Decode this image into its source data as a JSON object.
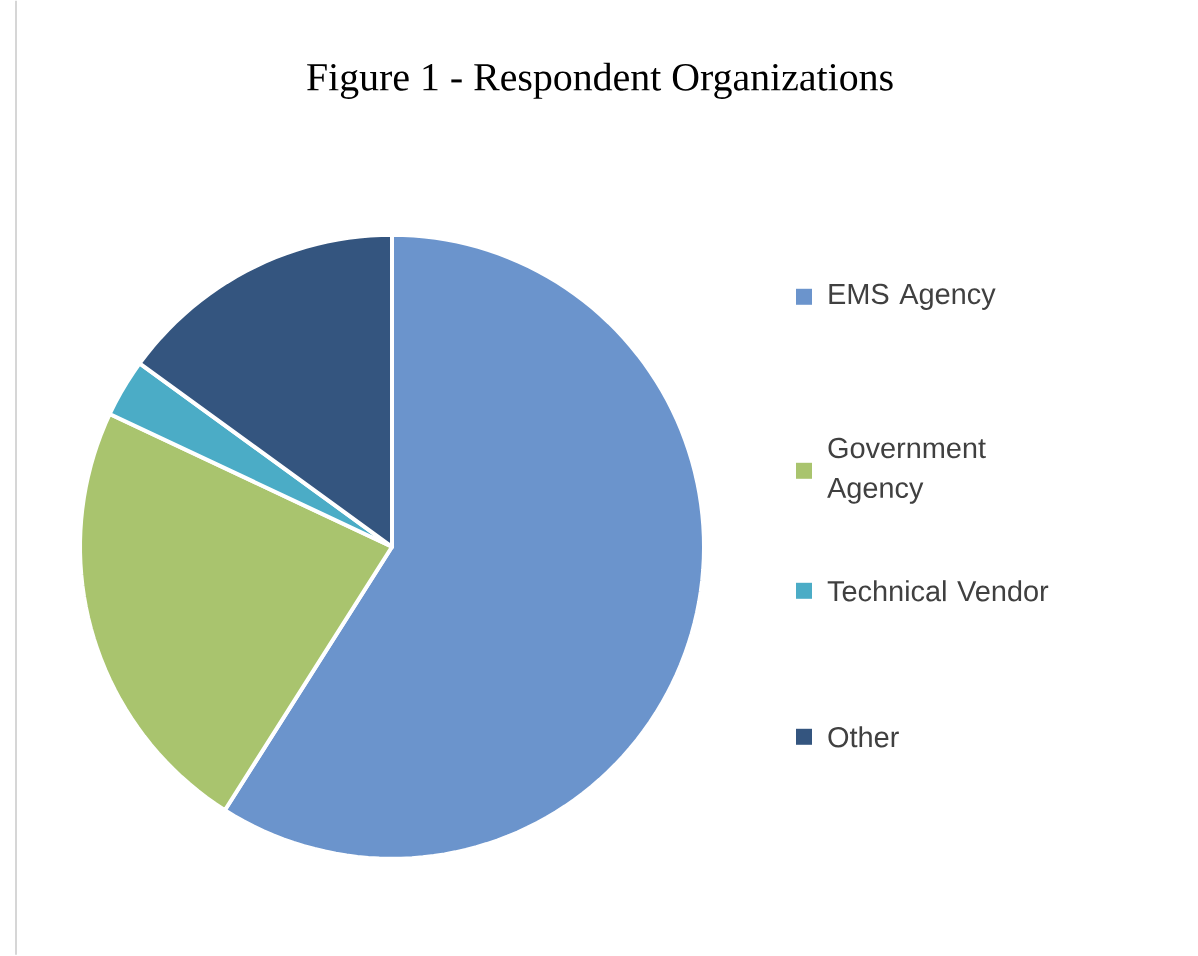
{
  "chart_data": {
    "type": "pie",
    "title": "Figure 1 - Respondent Organizations",
    "categories": [
      "EMS Agency",
      "Government Agency",
      "Technical Vendor",
      "Other"
    ],
    "values": [
      59,
      23,
      3,
      15
    ],
    "colors": [
      "#6b94cc",
      "#a9c46e",
      "#4bacc6",
      "#34557f"
    ],
    "legend": "right"
  }
}
